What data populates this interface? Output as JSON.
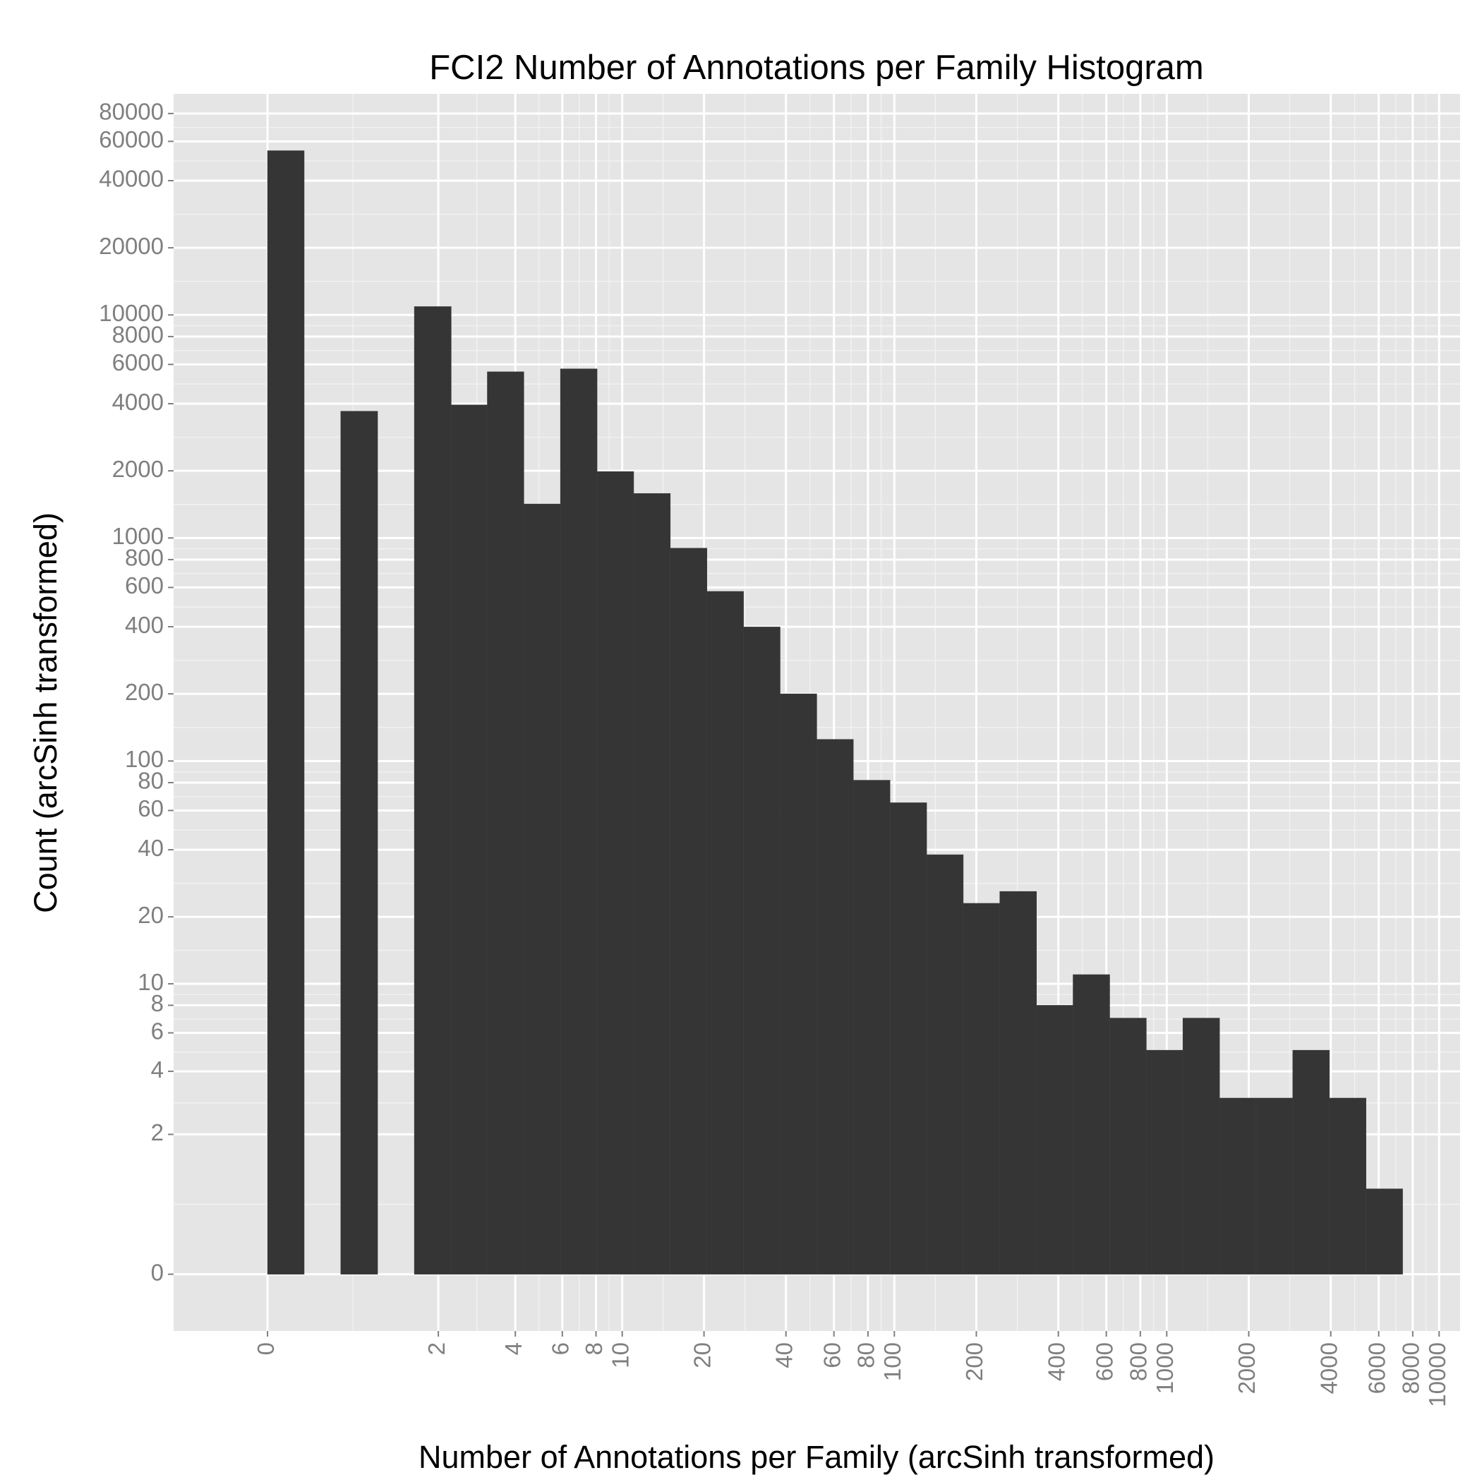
{
  "chart_data": {
    "type": "histogram",
    "title": "FCI2 Number of Annotations per Family Histogram",
    "x_label": "Number of Annotations per Family (arcSinh transformed)",
    "y_label": "Count (arcSinh transformed)",
    "xscale": "asinh",
    "yscale": "asinh",
    "bins": [
      0,
      0.3145,
      0.6594,
      1.0705,
      1.5852,
      2.2552,
      3.1267,
      4.3067,
      5.905,
      8.074,
      11.02,
      15.03,
      20.5,
      27.94,
      38.08,
      51.9,
      70.7,
      96.4,
      131.4,
      179,
      243.9,
      332.5,
      453,
      617.4,
      841.4,
      1146.6,
      1562.6,
      2129,
      2902,
      3955,
      5389,
      7344
    ],
    "counts": [
      54500,
      0,
      3700,
      0,
      10900,
      3950,
      5560,
      1420,
      5730,
      1985,
      1583,
      900,
      576,
      399,
      200,
      125,
      82,
      65,
      38,
      23,
      26,
      8,
      11,
      7,
      5,
      7,
      3,
      3,
      5,
      3,
      1
    ],
    "color": "#353535",
    "xlim": [
      -0.88,
      11940
    ],
    "ylim": [
      -0.62,
      98000
    ],
    "xticks": [
      0,
      2,
      4,
      6,
      8,
      10,
      20,
      40,
      60,
      80,
      100,
      200,
      400,
      600,
      800,
      1000,
      2000,
      4000,
      6000,
      8000,
      10000
    ],
    "yticks": [
      0,
      2,
      4,
      6,
      8,
      10,
      20,
      40,
      60,
      80,
      100,
      200,
      400,
      600,
      800,
      1000,
      2000,
      4000,
      6000,
      8000,
      10000,
      20000,
      40000,
      60000,
      80000
    ],
    "grid": true
  }
}
